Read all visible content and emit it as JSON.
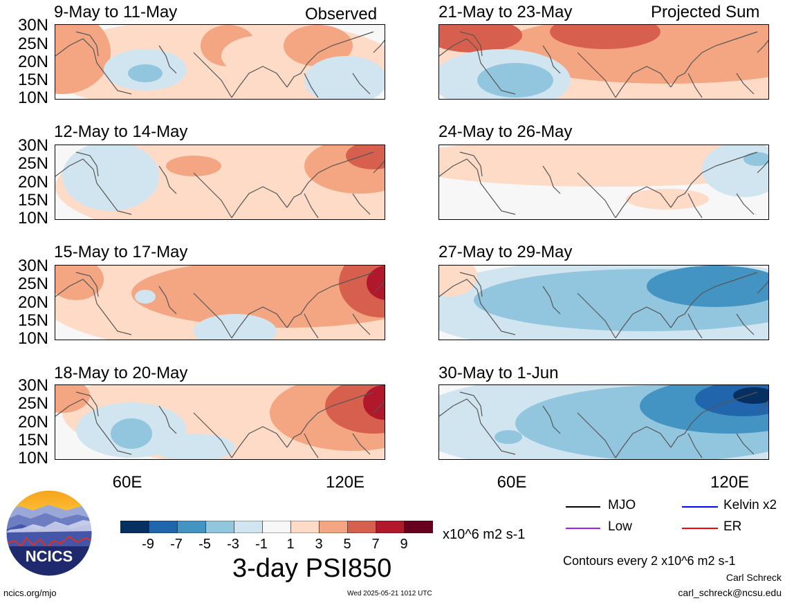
{
  "header": {
    "observed_label": "Observed",
    "projected_label": "Projected Sum"
  },
  "panels_left": [
    {
      "title": "9-May to 11-May"
    },
    {
      "title": "12-May to 14-May"
    },
    {
      "title": "15-May to 17-May"
    },
    {
      "title": "18-May to 20-May"
    }
  ],
  "panels_right": [
    {
      "title": "21-May to 23-May"
    },
    {
      "title": "24-May to 26-May"
    },
    {
      "title": "27-May to 29-May"
    },
    {
      "title": "30-May to 1-Jun"
    }
  ],
  "axes": {
    "lat_ticks": [
      "30N",
      "25N",
      "20N",
      "15N",
      "10N"
    ],
    "lon_ticks": [
      "60E",
      "120E"
    ]
  },
  "colorbar": {
    "labels": [
      "-9",
      "-7",
      "-5",
      "-3",
      "-1",
      "1",
      "3",
      "5",
      "7",
      "9"
    ],
    "colors": [
      "#053061",
      "#2166ac",
      "#4393c3",
      "#92c5de",
      "#d1e5f0",
      "#f7f7f7",
      "#fddbc7",
      "#f4a582",
      "#d6604d",
      "#b2182b",
      "#67001f"
    ],
    "units": "x10^6 m2 s-1",
    "title": "3-day PSI850"
  },
  "legend": {
    "items": [
      {
        "label": "MJO",
        "color": "#000000"
      },
      {
        "label": "Kelvin x2",
        "color": "#0000ff"
      },
      {
        "label": "Low",
        "color": "#a020f0"
      },
      {
        "label": "ER",
        "color": "#ff0000"
      }
    ],
    "contours_note": "Contours every 2 x10^6 m2 s-1"
  },
  "footer": {
    "logo_text": "NCICS",
    "site": "ncics.org/mjo",
    "timestamp": "Wed 2025-05-21 1012 UTC",
    "author": "Carl Schreck",
    "email": "carl_schreck@ncsu.edu"
  }
}
